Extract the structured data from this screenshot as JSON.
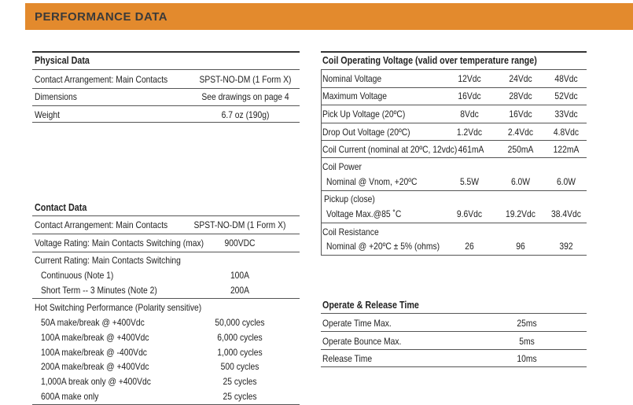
{
  "banner": {
    "title": "PERFORMANCE DATA"
  },
  "physical": {
    "title": "Physical Data",
    "rows": [
      {
        "label": "Contact Arrangement: Main Contacts",
        "value": "SPST-NO-DM (1 Form X)"
      },
      {
        "label": "Dimensions",
        "value": "See drawings on page 4"
      },
      {
        "label": "Weight",
        "value": "6.7 oz (190g)"
      }
    ]
  },
  "contact": {
    "title": "Contact Data",
    "rows": [
      {
        "label": "Contact Arrangement: Main Contacts",
        "value": "SPST-NO-DM (1 Form X)"
      },
      {
        "label": "Voltage Rating: Main Contacts Switching (max)",
        "value": "900VDC"
      }
    ],
    "current": {
      "label": "Current Rating: Main Contacts Switching",
      "items": [
        {
          "label": "Continuous (Note 1)",
          "value": "100A"
        },
        {
          "label": "Short Term -- 3 Minutes (Note 2)",
          "value": "200A"
        }
      ]
    },
    "hot": {
      "label": "Hot Switching Performance (Polarity sensitive)",
      "items": [
        {
          "label": "50A make/break @ +400Vdc",
          "value": "50,000 cycles"
        },
        {
          "label": "100A make/break @ +400Vdc",
          "value": "6,000 cycles"
        },
        {
          "label": "100A make/break @ -400Vdc",
          "value": "1,000 cycles"
        },
        {
          "label": "200A make/break @ +400Vdc",
          "value": "500 cycles"
        },
        {
          "label": "1,000A break only @ +400Vdc",
          "value": "25 cycles"
        },
        {
          "label": "600A make only",
          "value": "25 cycles"
        }
      ]
    }
  },
  "coil": {
    "title": "Coil Operating Voltage (valid over temperature range)",
    "rows": [
      {
        "label": "Nominal Voltage",
        "v1": "12Vdc",
        "v2": "24Vdc",
        "v3": "48Vdc"
      },
      {
        "label": "Maximum Voltage",
        "v1": "16Vdc",
        "v2": "28Vdc",
        "v3": "52Vdc"
      },
      {
        "label": "Pick Up Voltage (20ºC)",
        "v1": "8Vdc",
        "v2": "16Vdc",
        "v3": "33Vdc"
      },
      {
        "label": "Drop Out Voltage (20ºC)",
        "v1": "1.2Vdc",
        "v2": "2.4Vdc",
        "v3": "4.8Vdc"
      },
      {
        "label": "Coil Current (nominal at 20ºC, 12vdc)",
        "v1": "461mA",
        "v2": "250mA",
        "v3": "122mA"
      }
    ],
    "power": {
      "label": "Coil Power",
      "sub": "Nominal @ Vnom, +20ºC",
      "v1": "5.5W",
      "v2": "6.0W",
      "v3": "6.0W"
    },
    "pickup": {
      "label": "Pickup (close)",
      "sub": "Voltage Max.@85 ˚C",
      "v1": "9.6Vdc",
      "v2": "19.2Vdc",
      "v3": "38.4Vdc"
    },
    "resistance": {
      "label": "Coil Resistance",
      "sub": "Nominal @ +20ºC ± 5% (ohms)",
      "v1": "26",
      "v2": "96",
      "v3": "392"
    }
  },
  "operate": {
    "title": "Operate & Release Time",
    "rows": [
      {
        "label": "Operate Time Max.",
        "value": "25ms"
      },
      {
        "label": "Operate Bounce Max.",
        "value": "5ms"
      },
      {
        "label": "Release Time",
        "value": "10ms"
      }
    ]
  }
}
